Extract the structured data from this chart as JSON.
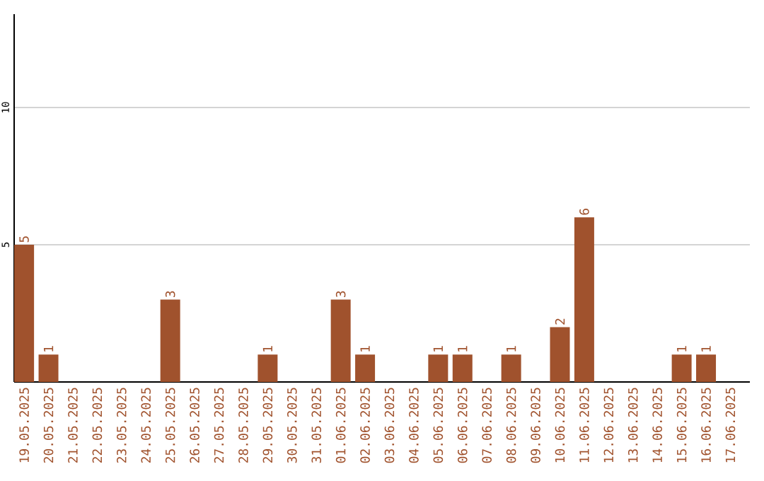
{
  "chart_data": {
    "type": "bar",
    "categories": [
      "19.05.2025",
      "20.05.2025",
      "21.05.2025",
      "22.05.2025",
      "23.05.2025",
      "24.05.2025",
      "25.05.2025",
      "26.05.2025",
      "27.05.2025",
      "28.05.2025",
      "29.05.2025",
      "30.05.2025",
      "31.05.2025",
      "01.06.2025",
      "02.06.2025",
      "03.06.2025",
      "04.06.2025",
      "05.06.2025",
      "06.06.2025",
      "07.06.2025",
      "08.06.2025",
      "09.06.2025",
      "10.06.2025",
      "11.06.2025",
      "12.06.2025",
      "13.06.2025",
      "14.06.2025",
      "15.06.2025",
      "16.06.2025",
      "17.06.2025"
    ],
    "values": [
      5,
      1,
      0,
      0,
      0,
      0,
      3,
      0,
      0,
      0,
      1,
      0,
      0,
      3,
      1,
      0,
      0,
      1,
      1,
      0,
      1,
      0,
      2,
      6,
      0,
      0,
      0,
      1,
      1,
      0
    ],
    "value_labels": [
      "5",
      "1",
      null,
      null,
      null,
      null,
      "3",
      null,
      null,
      null,
      "1",
      null,
      null,
      "3",
      "1",
      null,
      null,
      "1",
      "1",
      null,
      "1",
      null,
      "2",
      "6",
      null,
      null,
      null,
      "1",
      "1",
      null
    ],
    "color": "#a0522d",
    "ylim": [
      0,
      13.4
    ],
    "yticks": [
      5,
      10
    ],
    "grid": "y"
  }
}
